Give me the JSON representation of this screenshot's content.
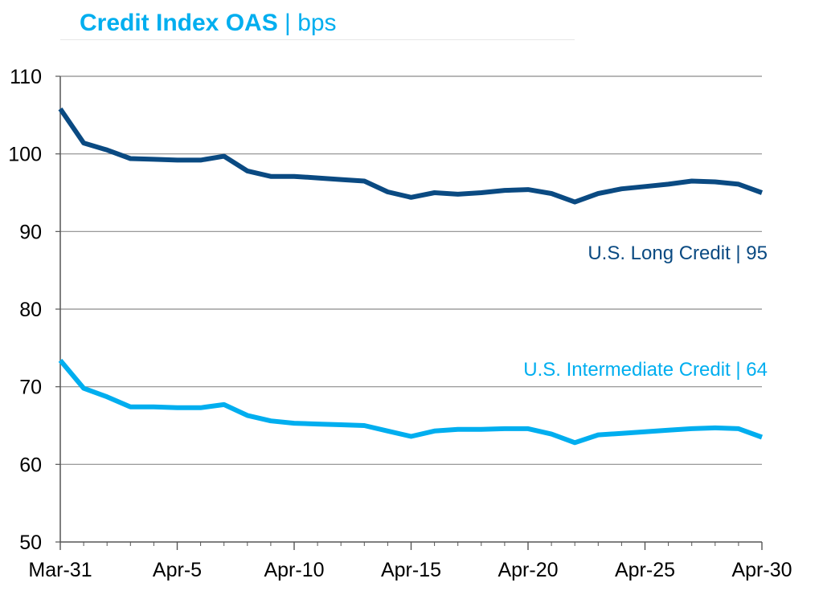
{
  "title": {
    "main": "Credit Index OAS",
    "separator": " | ",
    "unit": "bps",
    "color": "#00aeef"
  },
  "chart_data": {
    "type": "line",
    "title": "Credit Index OAS | bps",
    "x": [
      "Mar-31",
      "Apr-1",
      "Apr-2",
      "Apr-3",
      "Apr-4",
      "Apr-5",
      "Apr-6",
      "Apr-7",
      "Apr-8",
      "Apr-9",
      "Apr-10",
      "Apr-11",
      "Apr-12",
      "Apr-13",
      "Apr-14",
      "Apr-15",
      "Apr-16",
      "Apr-17",
      "Apr-18",
      "Apr-19",
      "Apr-20",
      "Apr-21",
      "Apr-22",
      "Apr-23",
      "Apr-24",
      "Apr-25",
      "Apr-26",
      "Apr-27",
      "Apr-28",
      "Apr-29",
      "Apr-30"
    ],
    "x_tick_labels": [
      "Mar-31",
      "Apr-5",
      "Apr-10",
      "Apr-15",
      "Apr-20",
      "Apr-25",
      "Apr-30"
    ],
    "ylim": [
      50,
      110
    ],
    "y_ticks": [
      50,
      60,
      70,
      80,
      90,
      100,
      110
    ],
    "grid": true,
    "series": [
      {
        "name": "U.S. Long Credit",
        "label": "U.S. Long Credit | 95",
        "color": "#0a4a82",
        "values": [
          105.8,
          101.4,
          100.5,
          99.4,
          99.3,
          99.2,
          99.2,
          99.7,
          97.8,
          97.1,
          97.1,
          96.9,
          96.7,
          96.5,
          95.1,
          94.4,
          95.0,
          94.8,
          95.0,
          95.3,
          95.4,
          94.9,
          93.8,
          94.9,
          95.5,
          95.8,
          96.1,
          96.5,
          96.4,
          96.1,
          95.0
        ]
      },
      {
        "name": "U.S. Intermediate Credit",
        "label": "U.S. Intermediate Credit | 64",
        "color": "#00aeef",
        "values": [
          73.4,
          69.8,
          68.7,
          67.4,
          67.4,
          67.3,
          67.3,
          67.7,
          66.3,
          65.6,
          65.3,
          65.2,
          65.1,
          65.0,
          64.3,
          63.6,
          64.3,
          64.5,
          64.5,
          64.6,
          64.6,
          63.9,
          62.8,
          63.8,
          64.0,
          64.2,
          64.4,
          64.6,
          64.7,
          64.6,
          63.5
        ]
      }
    ]
  }
}
